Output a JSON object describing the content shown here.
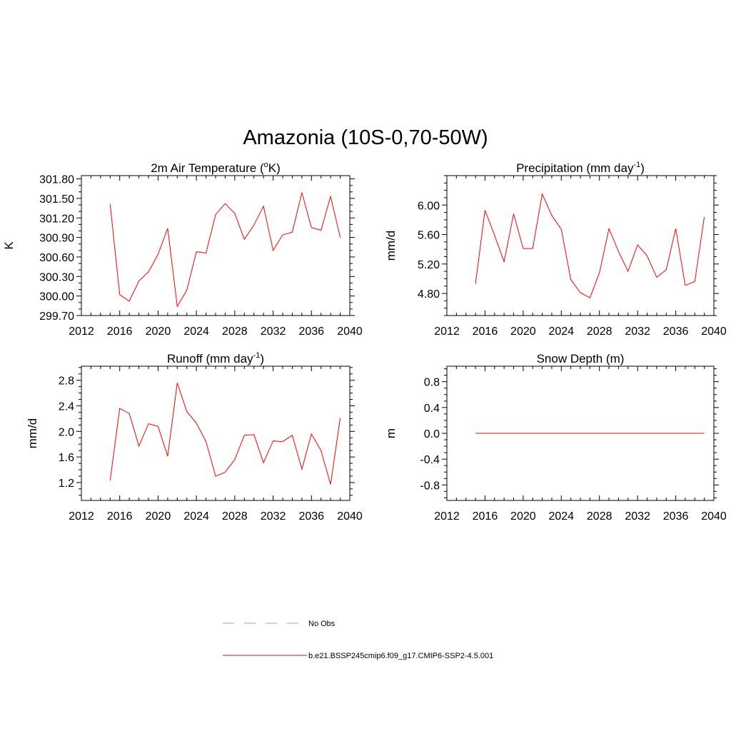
{
  "figure": {
    "title": "Amazonia (10S-0,70-50W)",
    "line_color": "#ff0000",
    "obs_color": "#9999ff"
  },
  "legend": {
    "items": [
      {
        "label": "No Obs",
        "style": "dashed",
        "color": "#9999ff"
      },
      {
        "label": "b.e21.BSSP245cmip6.f09_g17.CMIP6-SSP2-4.5.001",
        "style": "solid",
        "color": "#ff0000"
      }
    ]
  },
  "chart_data": [
    {
      "type": "line",
      "title": "2m Air Temperature (",
      "title_sup": "o",
      "title_tail": "K)",
      "xlabel": "",
      "ylabel": "K",
      "xlim": [
        2012,
        2040
      ],
      "ylim": [
        299.7,
        301.85
      ],
      "xticks": [
        2012,
        2016,
        2020,
        2024,
        2028,
        2032,
        2036,
        2040
      ],
      "xtick_labels": [
        "2012",
        "2016",
        "2020",
        "2024",
        "2028",
        "2032",
        "2036",
        "2040"
      ],
      "yticks": [
        299.7,
        300.0,
        300.3,
        300.6,
        300.9,
        301.2,
        301.5,
        301.8
      ],
      "ytick_labels": [
        "299.70",
        "300.00",
        "300.30",
        "300.60",
        "300.90",
        "301.20",
        "301.50",
        "301.80"
      ],
      "grid": false,
      "series": [
        {
          "x": [
            2015,
            2016,
            2017,
            2018,
            2019,
            2020,
            2021,
            2022,
            2023,
            2024,
            2025,
            2026,
            2027,
            2028,
            2029,
            2030,
            2031,
            2032,
            2033,
            2034,
            2035,
            2036,
            2037,
            2038,
            2039
          ],
          "values": [
            301.41,
            300.02,
            299.92,
            300.23,
            300.37,
            300.64,
            301.04,
            299.84,
            300.09,
            300.68,
            300.66,
            301.25,
            301.42,
            301.27,
            300.87,
            301.09,
            301.38,
            300.7,
            300.94,
            300.98,
            301.59,
            301.05,
            301.01,
            301.53,
            300.9
          ]
        }
      ]
    },
    {
      "type": "line",
      "title": "Precipitation (mm day",
      "title_sup": "-1",
      "title_tail": ")",
      "xlabel": "",
      "ylabel": "mm/d",
      "xlim": [
        2012,
        2040
      ],
      "ylim": [
        4.5,
        6.4
      ],
      "xticks": [
        2012,
        2016,
        2020,
        2024,
        2028,
        2032,
        2036,
        2040
      ],
      "xtick_labels": [
        "2012",
        "2016",
        "2020",
        "2024",
        "2028",
        "2032",
        "2036",
        "2040"
      ],
      "yticks": [
        4.8,
        5.2,
        5.6,
        6.0
      ],
      "ytick_labels": [
        "4.80",
        "5.20",
        "5.60",
        "6.00"
      ],
      "grid": false,
      "series": [
        {
          "x": [
            2015,
            2016,
            2017,
            2018,
            2019,
            2020,
            2021,
            2022,
            2023,
            2024,
            2025,
            2026,
            2027,
            2028,
            2029,
            2030,
            2031,
            2032,
            2033,
            2034,
            2035,
            2036,
            2037,
            2038,
            2039
          ],
          "values": [
            4.93,
            5.93,
            5.59,
            5.23,
            5.88,
            5.41,
            5.41,
            6.15,
            5.86,
            5.67,
            4.99,
            4.81,
            4.74,
            5.08,
            5.68,
            5.37,
            5.1,
            5.46,
            5.31,
            5.02,
            5.12,
            5.68,
            4.91,
            4.96,
            5.84
          ]
        }
      ]
    },
    {
      "type": "line",
      "title": "Runoff (mm day",
      "title_sup": "-1",
      "title_tail": ")",
      "xlabel": "",
      "ylabel": "mm/d",
      "xlim": [
        2012,
        2040
      ],
      "ylim": [
        0.92,
        3.02
      ],
      "xticks": [
        2012,
        2016,
        2020,
        2024,
        2028,
        2032,
        2036,
        2040
      ],
      "xtick_labels": [
        "2012",
        "2016",
        "2020",
        "2024",
        "2028",
        "2032",
        "2036",
        "2040"
      ],
      "yticks": [
        1.2,
        1.6,
        2.0,
        2.4,
        2.8
      ],
      "ytick_labels": [
        "1.2",
        "1.6",
        "2.0",
        "2.4",
        "2.8"
      ],
      "grid": false,
      "series": [
        {
          "x": [
            2015,
            2016,
            2017,
            2018,
            2019,
            2020,
            2021,
            2022,
            2023,
            2024,
            2025,
            2026,
            2027,
            2028,
            2029,
            2030,
            2031,
            2032,
            2033,
            2034,
            2035,
            2036,
            2037,
            2038,
            2039
          ],
          "values": [
            1.23,
            2.36,
            2.28,
            1.77,
            2.12,
            2.08,
            1.61,
            2.76,
            2.31,
            2.13,
            1.84,
            1.3,
            1.36,
            1.56,
            1.94,
            1.95,
            1.51,
            1.85,
            1.84,
            1.94,
            1.41,
            1.96,
            1.7,
            1.17,
            2.21
          ]
        }
      ]
    },
    {
      "type": "line",
      "title": "Snow Depth (m)",
      "title_sup": "",
      "title_tail": "",
      "xlabel": "",
      "ylabel": "m",
      "xlim": [
        2012,
        2040
      ],
      "ylim": [
        -1.04,
        1.04
      ],
      "xticks": [
        2012,
        2016,
        2020,
        2024,
        2028,
        2032,
        2036,
        2040
      ],
      "xtick_labels": [
        "2012",
        "2016",
        "2020",
        "2024",
        "2028",
        "2032",
        "2036",
        "2040"
      ],
      "yticks": [
        -0.8,
        -0.4,
        0.0,
        0.4,
        0.8
      ],
      "ytick_labels": [
        "-0.8",
        "-0.4",
        "0.0",
        "0.4",
        "0.8"
      ],
      "grid": false,
      "series": [
        {
          "x": [
            2015,
            2016,
            2017,
            2018,
            2019,
            2020,
            2021,
            2022,
            2023,
            2024,
            2025,
            2026,
            2027,
            2028,
            2029,
            2030,
            2031,
            2032,
            2033,
            2034,
            2035,
            2036,
            2037,
            2038,
            2039
          ],
          "values": [
            0,
            0,
            0,
            0,
            0,
            0,
            0,
            0,
            0,
            0,
            0,
            0,
            0,
            0,
            0,
            0,
            0,
            0,
            0,
            0,
            0,
            0,
            0,
            0,
            0
          ]
        }
      ]
    }
  ]
}
